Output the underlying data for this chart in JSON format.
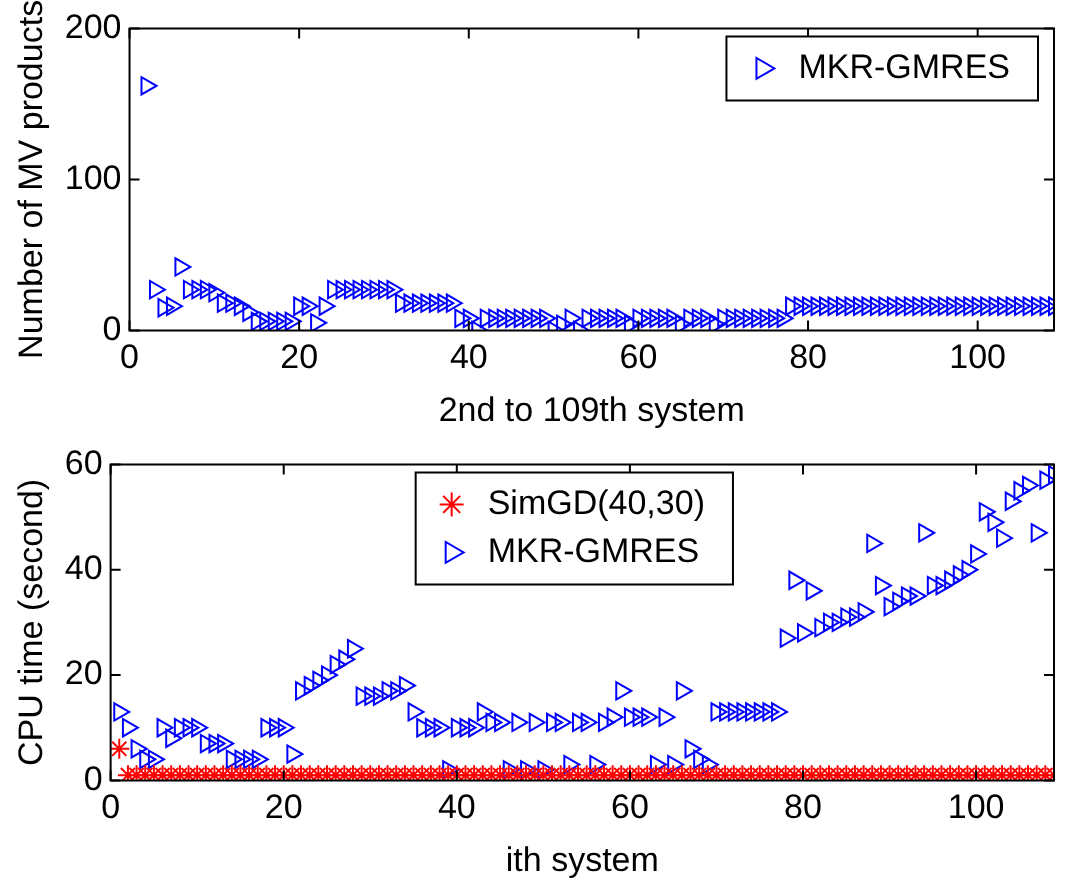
{
  "chart_data": [
    {
      "type": "scatter",
      "xlabel": "2nd to 109th system",
      "ylabel": "Number of MV products",
      "xlim": [
        0,
        109
      ],
      "xticks": [
        0,
        20,
        40,
        60,
        80,
        100
      ],
      "ylim": [
        0,
        200
      ],
      "yticks": [
        0,
        100,
        200
      ],
      "grid": false,
      "legend": "top right",
      "series": [
        {
          "name": "MKR-GMRES",
          "color": "#0000ff",
          "marker": "triangle",
          "x": [
            2,
            3,
            4,
            5,
            6,
            7,
            8,
            9,
            10,
            11,
            12,
            13,
            14,
            15,
            16,
            17,
            18,
            19,
            20,
            21,
            22,
            23,
            24,
            25,
            26,
            27,
            28,
            29,
            30,
            31,
            32,
            33,
            34,
            35,
            36,
            37,
            38,
            39,
            40,
            41,
            42,
            43,
            44,
            45,
            46,
            47,
            48,
            49,
            50,
            51,
            52,
            53,
            54,
            55,
            56,
            57,
            58,
            59,
            60,
            61,
            62,
            63,
            64,
            65,
            66,
            67,
            68,
            69,
            70,
            71,
            72,
            73,
            74,
            75,
            76,
            77,
            78,
            79,
            80,
            81,
            82,
            83,
            84,
            85,
            86,
            87,
            88,
            89,
            90,
            91,
            92,
            93,
            94,
            95,
            96,
            97,
            98,
            99,
            100,
            101,
            102,
            103,
            104,
            105,
            106,
            107,
            108,
            109
          ],
          "values": [
            162,
            27,
            15,
            16,
            42,
            27,
            27,
            27,
            25,
            18,
            18,
            16,
            12,
            6,
            6,
            6,
            6,
            6,
            16,
            16,
            5,
            16,
            27,
            27,
            27,
            27,
            27,
            27,
            27,
            27,
            18,
            18,
            18,
            18,
            18,
            18,
            18,
            8,
            8,
            0,
            8,
            8,
            8,
            8,
            8,
            8,
            8,
            8,
            0,
            4,
            8,
            0,
            8,
            8,
            8,
            8,
            8,
            4,
            8,
            8,
            8,
            8,
            8,
            4,
            8,
            8,
            8,
            4,
            8,
            8,
            8,
            8,
            8,
            8,
            8,
            8,
            16,
            16,
            16,
            16,
            16,
            16,
            16,
            16,
            16,
            16,
            16,
            16,
            16,
            16,
            16,
            16,
            16,
            16,
            16,
            16,
            16,
            16,
            16,
            16,
            16,
            16,
            16,
            16,
            16,
            16,
            16,
            16
          ]
        }
      ]
    },
    {
      "type": "scatter",
      "xlabel": "ith system",
      "ylabel": "CPU time (second)",
      "xlim": [
        0,
        109
      ],
      "xticks": [
        0,
        20,
        40,
        60,
        80,
        100
      ],
      "ylim": [
        0,
        60
      ],
      "yticks": [
        0,
        20,
        40,
        60
      ],
      "grid": false,
      "legend": "top",
      "series": [
        {
          "name": "SimGD(40,30)",
          "color": "#ff0000",
          "marker": "cross",
          "x": [
            1,
            2,
            3,
            4,
            5,
            6,
            7,
            8,
            9,
            10,
            11,
            12,
            13,
            14,
            15,
            16,
            17,
            18,
            19,
            20,
            21,
            22,
            23,
            24,
            25,
            26,
            27,
            28,
            29,
            30,
            31,
            32,
            33,
            34,
            35,
            36,
            37,
            38,
            39,
            40,
            41,
            42,
            43,
            44,
            45,
            46,
            47,
            48,
            49,
            50,
            51,
            52,
            53,
            54,
            55,
            56,
            57,
            58,
            59,
            60,
            61,
            62,
            63,
            64,
            65,
            66,
            67,
            68,
            69,
            70,
            71,
            72,
            73,
            74,
            75,
            76,
            77,
            78,
            79,
            80,
            81,
            82,
            83,
            84,
            85,
            86,
            87,
            88,
            89,
            90,
            91,
            92,
            93,
            94,
            95,
            96,
            97,
            98,
            99,
            100,
            101,
            102,
            103,
            104,
            105,
            106,
            107,
            108,
            109
          ],
          "values": [
            6,
            1,
            1,
            1,
            1,
            1,
            1,
            1,
            1,
            1,
            1,
            1,
            1,
            1,
            1,
            1,
            1,
            1,
            1,
            1,
            1,
            1,
            1,
            1,
            1,
            1,
            1,
            1,
            1,
            1,
            1,
            1,
            1,
            1,
            1,
            1,
            1,
            1,
            1,
            1,
            1,
            1,
            1,
            1,
            1,
            1,
            1,
            1,
            1,
            1,
            1,
            1,
            1,
            1,
            1,
            1,
            1,
            1,
            1,
            1,
            1,
            1,
            1,
            1,
            1,
            1,
            1,
            1,
            1,
            1,
            1,
            1,
            1,
            1,
            1,
            1,
            1,
            1,
            1,
            1,
            1,
            1,
            1,
            1,
            1,
            1,
            1,
            1,
            1,
            1,
            1,
            1,
            1,
            1,
            1,
            1,
            1,
            1,
            1,
            1,
            1,
            1,
            1,
            1,
            1,
            1,
            1,
            1,
            1
          ]
        },
        {
          "name": "MKR-GMRES",
          "color": "#0000ff",
          "marker": "triangle",
          "x": [
            1,
            2,
            3,
            4,
            5,
            6,
            7,
            8,
            9,
            10,
            11,
            12,
            13,
            14,
            15,
            16,
            17,
            18,
            19,
            20,
            21,
            22,
            23,
            24,
            25,
            26,
            27,
            28,
            29,
            30,
            31,
            32,
            33,
            34,
            35,
            36,
            37,
            38,
            39,
            40,
            41,
            42,
            43,
            44,
            45,
            46,
            47,
            48,
            49,
            50,
            51,
            52,
            53,
            54,
            55,
            56,
            57,
            58,
            59,
            60,
            61,
            62,
            63,
            64,
            65,
            66,
            67,
            68,
            69,
            70,
            71,
            72,
            73,
            74,
            75,
            76,
            77,
            78,
            79,
            80,
            81,
            82,
            83,
            84,
            85,
            86,
            87,
            88,
            89,
            90,
            91,
            92,
            93,
            94,
            95,
            96,
            97,
            98,
            99,
            100,
            101,
            102,
            103,
            104,
            105,
            106,
            107,
            108,
            109
          ],
          "values": [
            13,
            10,
            6,
            4,
            4,
            10,
            8,
            10,
            10,
            10,
            7,
            7,
            7,
            4,
            4,
            4,
            4,
            10,
            10,
            10,
            5,
            17,
            18,
            19,
            20,
            22,
            23,
            25,
            16,
            16,
            16,
            17,
            17,
            18,
            13,
            10,
            10,
            10,
            2,
            10,
            10,
            10,
            13,
            11,
            11,
            2,
            11,
            2,
            11,
            2,
            11,
            11,
            3,
            11,
            11,
            3,
            11,
            12,
            17,
            12,
            12,
            12,
            3,
            12,
            3,
            17,
            6,
            4,
            3,
            13,
            13,
            13,
            13,
            13,
            13,
            13,
            13,
            27,
            38,
            28,
            36,
            29,
            30,
            30,
            31,
            31,
            32,
            45,
            37,
            33,
            34,
            35,
            35,
            47,
            37,
            37,
            38,
            39,
            40,
            43,
            51,
            49,
            46,
            53,
            55,
            56,
            47,
            57,
            58
          ]
        }
      ]
    }
  ]
}
